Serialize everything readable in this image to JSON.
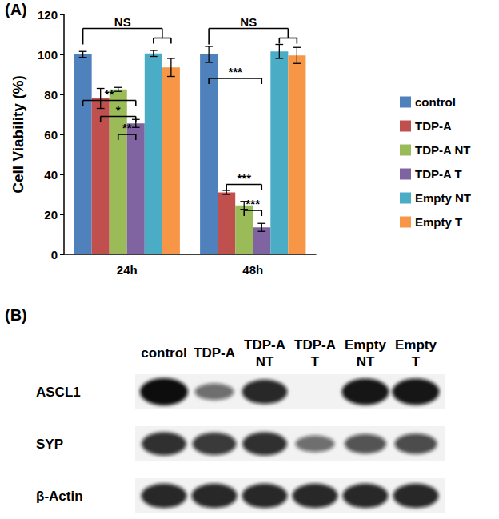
{
  "chart_data": {
    "type": "bar",
    "panel_label": "(A)",
    "y_label": "Cell Viability (%)",
    "categories": [
      "24h",
      "48h"
    ],
    "series": [
      {
        "name": "control",
        "color": "#4f81bd",
        "values": [
          100,
          100
        ],
        "errors": [
          1.5,
          4
        ]
      },
      {
        "name": "TDP-A",
        "color": "#c0504d",
        "values": [
          78,
          31
        ],
        "errors": [
          5,
          1
        ]
      },
      {
        "name": "TDP-A NT",
        "color": "#9bbb59",
        "values": [
          82.5,
          24.5
        ],
        "errors": [
          1,
          2
        ]
      },
      {
        "name": "TDP-A T",
        "color": "#8064a2",
        "values": [
          65.5,
          13.5
        ],
        "errors": [
          2,
          2
        ]
      },
      {
        "name": "Empty NT",
        "color": "#4bacc6",
        "values": [
          100.5,
          101.5
        ],
        "errors": [
          1.5,
          3.5
        ]
      },
      {
        "name": "Empty T",
        "color": "#f79646",
        "values": [
          93.5,
          99.5
        ],
        "errors": [
          4.5,
          4
        ]
      }
    ],
    "ylim": [
      0,
      120
    ],
    "yticks": [
      0,
      20,
      40,
      60,
      80,
      100,
      120
    ],
    "grid": false,
    "legend": "right",
    "annotations": [
      {
        "label": "NS",
        "category": "24h",
        "from": "control",
        "to": [
          "Empty NT",
          "Empty T"
        ],
        "y": 113
      },
      {
        "label": "**",
        "category": "24h",
        "from": "control",
        "to": [
          "TDP-A T"
        ],
        "y": 77
      },
      {
        "label": "*",
        "category": "24h",
        "from": "TDP-A",
        "to": [
          "TDP-A T"
        ],
        "y": 69
      },
      {
        "label": "**",
        "category": "24h",
        "from": "TDP-A NT",
        "to": [
          "TDP-A T"
        ],
        "y": 60
      },
      {
        "label": "NS",
        "category": "48h",
        "from": "control",
        "to": [
          "Empty NT",
          "Empty T"
        ],
        "y": 113
      },
      {
        "label": "***",
        "category": "48h",
        "from": "control",
        "to": [
          "TDP-A T"
        ],
        "y": 88
      },
      {
        "label": "***",
        "category": "48h",
        "from": "TDP-A",
        "to": [
          "TDP-A T"
        ],
        "y": 35
      },
      {
        "label": "***",
        "category": "48h",
        "from": "TDP-A NT",
        "to": [
          "TDP-A T"
        ],
        "y": 22
      }
    ]
  },
  "blot": {
    "panel_label": "(B)",
    "lanes": [
      "control",
      "TDP-A",
      "TDP-A NT",
      "TDP-A T",
      "Empty NT",
      "Empty T"
    ],
    "rows": [
      {
        "name": "ASCL1",
        "intensity": [
          1.0,
          0.45,
          0.85,
          0,
          0.95,
          0.95
        ]
      },
      {
        "name": "SYP",
        "intensity": [
          0.8,
          0.75,
          0.8,
          0.45,
          0.6,
          0.65
        ]
      },
      {
        "name": "β-Actin",
        "intensity": [
          0.85,
          0.85,
          0.85,
          0.85,
          0.85,
          0.85
        ]
      }
    ]
  }
}
